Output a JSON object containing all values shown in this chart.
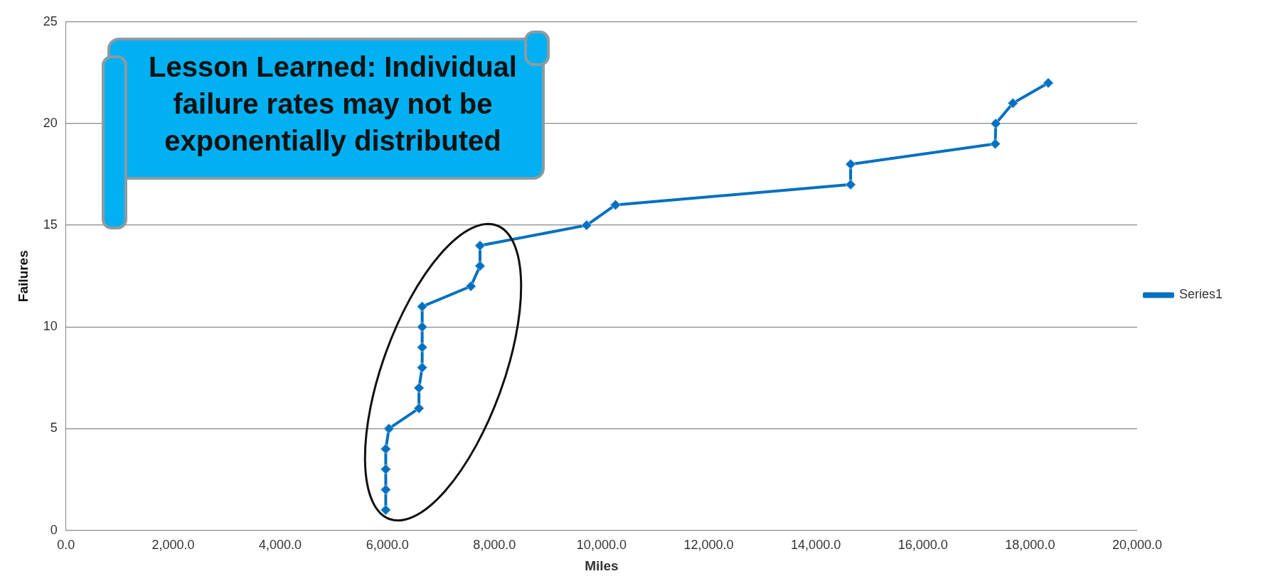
{
  "chart_data": {
    "type": "line",
    "xlabel": "Miles",
    "ylabel": "Failures",
    "series": [
      {
        "name": "Series1",
        "color": "#0070c0",
        "x": [
          5970,
          5970,
          5970,
          5970,
          6030,
          6590,
          6590,
          6650,
          6650,
          6650,
          6650,
          7560,
          7730,
          7730,
          9720,
          10260,
          14650,
          14650,
          17350,
          17360,
          17680,
          18340
        ],
        "values": [
          1,
          2,
          3,
          4,
          5,
          6,
          7,
          8,
          9,
          10,
          11,
          12,
          13,
          14,
          15,
          16,
          17,
          18,
          19,
          20,
          21,
          22
        ]
      }
    ],
    "xlim": [
      0,
      20000
    ],
    "ylim": [
      0,
      25
    ],
    "xticks": [
      {
        "value": 0,
        "label": "0.0"
      },
      {
        "value": 2000,
        "label": "2,000.0"
      },
      {
        "value": 4000,
        "label": "4,000.0"
      },
      {
        "value": 6000,
        "label": "6,000.0"
      },
      {
        "value": 8000,
        "label": "8,000.0"
      },
      {
        "value": 10000,
        "label": "10,000.0"
      },
      {
        "value": 12000,
        "label": "12,000.0"
      },
      {
        "value": 14000,
        "label": "14,000.0"
      },
      {
        "value": 16000,
        "label": "16,000.0"
      },
      {
        "value": 18000,
        "label": "18,000.0"
      },
      {
        "value": 20000,
        "label": "20,000.0"
      }
    ],
    "yticks": [
      0,
      5,
      10,
      15,
      20,
      25
    ],
    "grid": "y",
    "legend": "right",
    "marker": "diamond",
    "line_style": "solid",
    "annotations": [
      "Lesson Learned:  Individual failure rates may not be exponentially distributed"
    ]
  }
}
